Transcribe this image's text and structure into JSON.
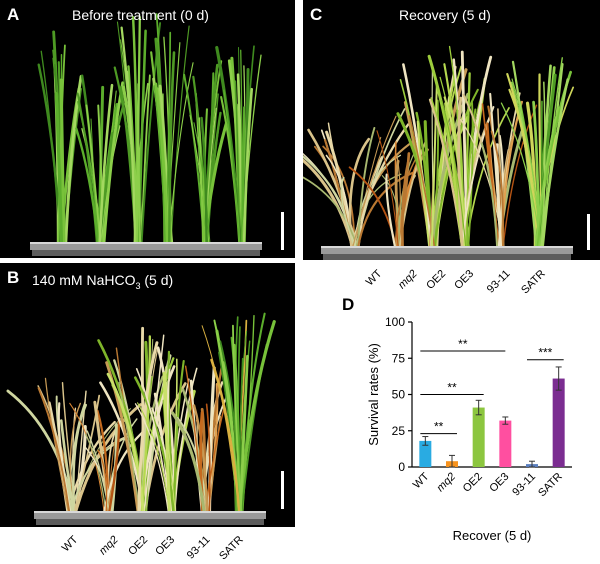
{
  "panels": {
    "A": {
      "letter": "A",
      "title": "Before treatment (0 d)"
    },
    "B": {
      "letter": "B",
      "title_prefix": "140 mM NaHCO",
      "title_sub": "3",
      "title_suffix": " (5 d)"
    },
    "C": {
      "letter": "C",
      "title": "Recovery (5 d)"
    },
    "D": {
      "letter": "D"
    }
  },
  "genotype_labels": [
    "WT",
    "mq2",
    "OE2",
    "OE3",
    "93-11",
    "SATR"
  ],
  "chart_data": {
    "type": "bar",
    "categories": [
      "WT",
      "mq2",
      "OE2",
      "OE3",
      "93-11",
      "SATR"
    ],
    "values": [
      18,
      4,
      41,
      32,
      2,
      61
    ],
    "errors": [
      3,
      4,
      5,
      2.5,
      2,
      8
    ],
    "colors": [
      "#29abe2",
      "#f7931e",
      "#8cc63f",
      "#ff4fa0",
      "#5b7fbf",
      "#7b2d91"
    ],
    "ylabel": "Survival rates (%)",
    "xlabel": "Recover (5 d)",
    "ylim": [
      0,
      100
    ],
    "yticks": [
      0,
      25,
      50,
      75,
      100
    ],
    "significance": [
      {
        "from": 0,
        "to": 1,
        "label": "**"
      },
      {
        "from": 0,
        "to": 2,
        "label": "**"
      },
      {
        "from": 0,
        "to": 3,
        "label": "**"
      },
      {
        "from": 4,
        "to": 5,
        "label": "***"
      }
    ]
  }
}
